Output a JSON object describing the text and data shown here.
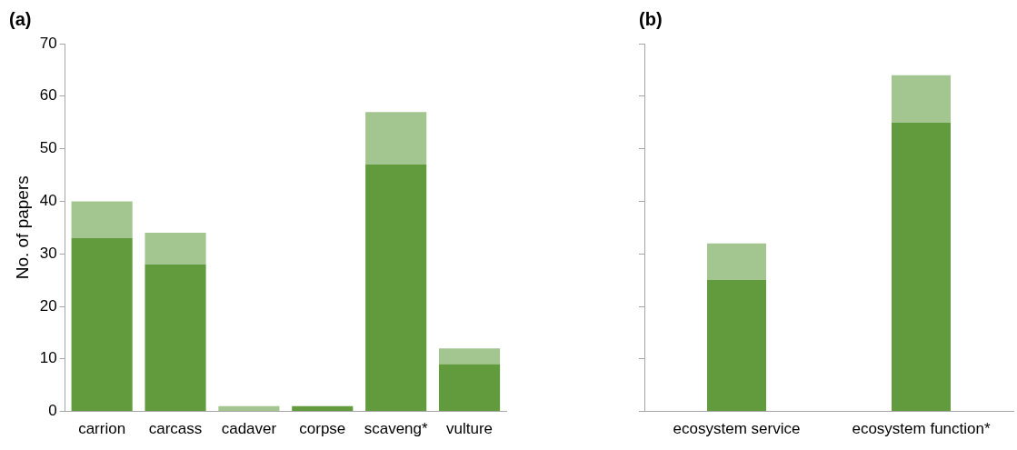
{
  "chart_data": [
    {
      "type": "bar",
      "title": "(a)",
      "ylabel": "No. of papers",
      "categories": [
        "carrion",
        "carcass",
        "cadaver",
        "corpse",
        "scaveng*",
        "vulture"
      ],
      "stacked": true,
      "series": [
        {
          "color": "#629a3e",
          "values": [
            33,
            28,
            0,
            1,
            47,
            9
          ]
        },
        {
          "color": "#a3c590",
          "values": [
            7,
            6,
            1,
            0,
            10,
            3
          ]
        }
      ],
      "ylim": [
        0,
        70
      ],
      "yticks": [
        0,
        10,
        20,
        30,
        40,
        50,
        60,
        70
      ],
      "grid": false,
      "legend": false
    },
    {
      "type": "bar",
      "title": "(b)",
      "categories": [
        "ecosystem service",
        "ecosystem function*"
      ],
      "stacked": true,
      "series": [
        {
          "color": "#629a3e",
          "values": [
            25,
            55
          ]
        },
        {
          "color": "#a3c590",
          "values": [
            7,
            9
          ]
        }
      ],
      "ylim": [
        0,
        70
      ],
      "yticks": [
        0,
        10,
        20,
        30,
        40,
        50,
        60,
        70
      ],
      "tick_labels": "x",
      "grid": false,
      "legend": false
    }
  ]
}
